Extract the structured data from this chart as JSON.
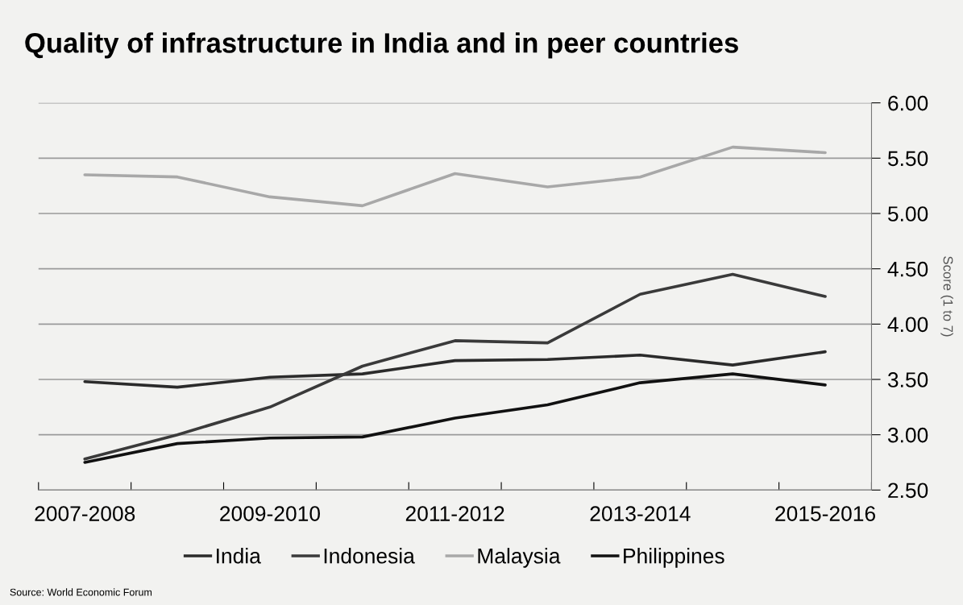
{
  "chart_data": {
    "type": "line",
    "title": "Quality of infrastructure in India and in peer countries",
    "ylabel": "Score (1 to 7)",
    "categories": [
      "2007-2008",
      null,
      "2009-2010",
      null,
      "2011-2012",
      null,
      "2013-2014",
      null,
      "2015-2016"
    ],
    "series": [
      {
        "name": "India",
        "color": "#2b2b2b",
        "values": [
          3.48,
          3.43,
          3.52,
          3.55,
          3.67,
          3.68,
          3.72,
          3.63,
          3.75
        ]
      },
      {
        "name": "Indonesia",
        "color": "#3a3a3a",
        "values": [
          2.78,
          3.0,
          3.25,
          3.62,
          3.85,
          3.83,
          4.27,
          4.45,
          4.25
        ]
      },
      {
        "name": "Malaysia",
        "color": "#a8a8a8",
        "values": [
          5.35,
          5.33,
          5.15,
          5.07,
          5.36,
          5.24,
          5.33,
          5.6,
          5.55
        ]
      },
      {
        "name": "Philippines",
        "color": "#111111",
        "values": [
          2.75,
          2.92,
          2.97,
          2.98,
          3.15,
          3.27,
          3.47,
          3.55,
          3.45
        ]
      }
    ],
    "ylim": [
      2.5,
      6.0
    ],
    "yticks": [
      {
        "value": 2.5,
        "label": "2.50"
      },
      {
        "value": 3.0,
        "label": "3.00"
      },
      {
        "value": 3.5,
        "label": "3.50"
      },
      {
        "value": 4.0,
        "label": "4.00"
      },
      {
        "value": 4.5,
        "label": "4.50"
      },
      {
        "value": 5.0,
        "label": "5.00"
      },
      {
        "value": 5.5,
        "label": "5.50"
      },
      {
        "value": 6.0,
        "label": "6.00"
      }
    ],
    "grid": "y",
    "legend": "bottom",
    "marker": "none",
    "line_style": "solid",
    "annotations": [
      "Source: World Economic Forum"
    ]
  }
}
